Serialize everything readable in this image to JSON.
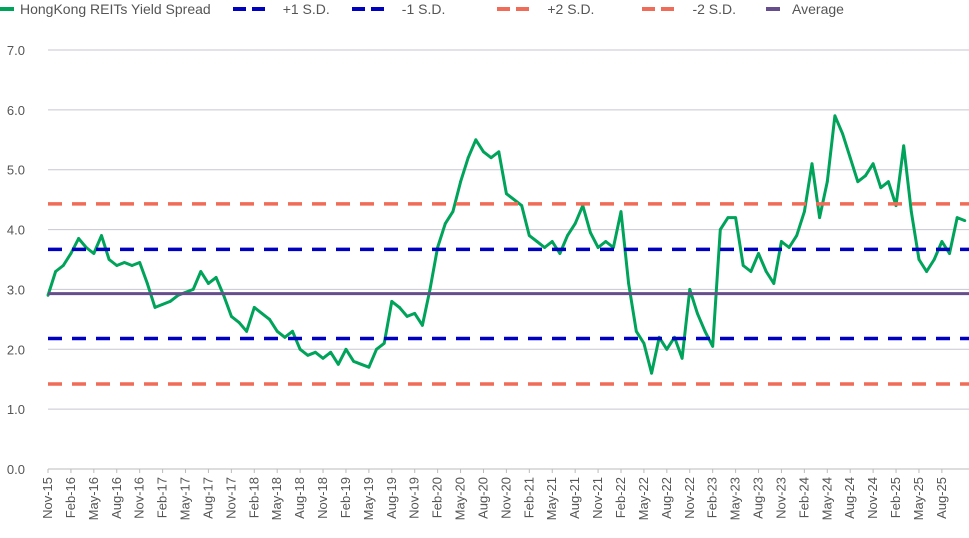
{
  "chart_data": {
    "type": "line",
    "title": "",
    "xlabel": "",
    "ylabel": "",
    "ylim": [
      0,
      7
    ],
    "y_ticks": [
      "0.0",
      "1.0",
      "2.0",
      "3.0",
      "4.0",
      "5.0",
      "6.0",
      "7.0"
    ],
    "x_ticks": [
      "Nov-15",
      "Feb-16",
      "May-16",
      "Aug-16",
      "Nov-16",
      "Feb-17",
      "May-17",
      "Aug-17",
      "Nov-17",
      "Feb-18",
      "May-18",
      "Aug-18",
      "Nov-18",
      "Feb-19",
      "May-19",
      "Aug-19",
      "Nov-19",
      "Feb-20",
      "May-20",
      "Aug-20",
      "Nov-20",
      "Feb-21",
      "May-21",
      "Aug-21",
      "Nov-21",
      "Feb-22",
      "May-22",
      "Aug-22",
      "Nov-22",
      "Feb-23",
      "May-23",
      "Aug-23",
      "Nov-23",
      "Feb-24",
      "May-24",
      "Aug-24",
      "Nov-24",
      "Feb-25",
      "May-25",
      "Aug-25"
    ],
    "grid": "horizontal",
    "legend_position": "top-left",
    "series": [
      {
        "name": "HongKong REITs Yield Spread",
        "color": "#00A35A",
        "style": "solid",
        "x": [
          "2015-11",
          "2015-12",
          "2016-01",
          "2016-02",
          "2016-03",
          "2016-04",
          "2016-05",
          "2016-06",
          "2016-07",
          "2016-08",
          "2016-09",
          "2016-10",
          "2016-11",
          "2016-12",
          "2017-01",
          "2017-02",
          "2017-03",
          "2017-04",
          "2017-05",
          "2017-06",
          "2017-07",
          "2017-08",
          "2017-09",
          "2017-10",
          "2017-11",
          "2017-12",
          "2018-01",
          "2018-02",
          "2018-03",
          "2018-04",
          "2018-05",
          "2018-06",
          "2018-07",
          "2018-08",
          "2018-09",
          "2018-10",
          "2018-11",
          "2018-12",
          "2019-01",
          "2019-02",
          "2019-03",
          "2019-04",
          "2019-05",
          "2019-06",
          "2019-07",
          "2019-08",
          "2019-09",
          "2019-10",
          "2019-11",
          "2019-12",
          "2020-01",
          "2020-02",
          "2020-03",
          "2020-04",
          "2020-05",
          "2020-06",
          "2020-07",
          "2020-08",
          "2020-09",
          "2020-10",
          "2020-11",
          "2020-12",
          "2021-01",
          "2021-02",
          "2021-03",
          "2021-04",
          "2021-05",
          "2021-06",
          "2021-07",
          "2021-08",
          "2021-09",
          "2021-10",
          "2021-11",
          "2021-12",
          "2022-01",
          "2022-02",
          "2022-03",
          "2022-04",
          "2022-05",
          "2022-06",
          "2022-07",
          "2022-08",
          "2022-09",
          "2022-10",
          "2022-11",
          "2022-12",
          "2023-01",
          "2023-02",
          "2023-03",
          "2023-04",
          "2023-05",
          "2023-06",
          "2023-07",
          "2023-08",
          "2023-09",
          "2023-10",
          "2023-11",
          "2023-12",
          "2024-01",
          "2024-02",
          "2024-03",
          "2024-04",
          "2024-05",
          "2024-06",
          "2024-07",
          "2024-08",
          "2024-09",
          "2024-10",
          "2024-11",
          "2024-12",
          "2025-01",
          "2025-02",
          "2025-03",
          "2025-04",
          "2025-05",
          "2025-06",
          "2025-07",
          "2025-08",
          "2025-09",
          "2025-10",
          "2025-11"
        ],
        "values": [
          2.9,
          3.3,
          3.4,
          3.6,
          3.85,
          3.7,
          3.6,
          3.9,
          3.5,
          3.4,
          3.45,
          3.4,
          3.45,
          3.1,
          2.7,
          2.75,
          2.8,
          2.9,
          2.95,
          3.0,
          3.3,
          3.1,
          3.2,
          2.9,
          2.55,
          2.45,
          2.3,
          2.7,
          2.6,
          2.5,
          2.3,
          2.2,
          2.3,
          2.0,
          1.9,
          1.95,
          1.85,
          1.95,
          1.75,
          2.0,
          1.8,
          1.75,
          1.7,
          2.0,
          2.1,
          2.8,
          2.7,
          2.55,
          2.6,
          2.4,
          3.0,
          3.7,
          4.1,
          4.3,
          4.8,
          5.2,
          5.5,
          5.3,
          5.2,
          5.3,
          4.6,
          4.5,
          4.4,
          3.9,
          3.8,
          3.7,
          3.8,
          3.6,
          3.9,
          4.1,
          4.4,
          3.95,
          3.7,
          3.8,
          3.7,
          4.3,
          3.1,
          2.3,
          2.1,
          1.6,
          2.2,
          2.0,
          2.2,
          1.85,
          3.0,
          2.6,
          2.3,
          2.05,
          4.0,
          4.2,
          4.2,
          3.4,
          3.3,
          3.6,
          3.3,
          3.1,
          3.8,
          3.7,
          3.9,
          4.3,
          5.1,
          4.2,
          4.8,
          5.9,
          5.6,
          5.2,
          4.8,
          4.9,
          5.1,
          4.7,
          4.8,
          4.4,
          5.4,
          4.3,
          3.5,
          3.3,
          3.5,
          3.8,
          3.6,
          4.2,
          4.15
        ]
      },
      {
        "name": "+1 S.D.",
        "color": "#0000C0",
        "style": "dashed",
        "value": 3.67
      },
      {
        "name": "-1 S.D.",
        "color": "#0000C0",
        "style": "dashed",
        "value": 2.18
      },
      {
        "name": "+2 S.D.",
        "color": "#F06C58",
        "style": "dashed",
        "value": 4.43
      },
      {
        "name": "-2 S.D.",
        "color": "#F06C58",
        "style": "dashed",
        "value": 1.42
      },
      {
        "name": "Average",
        "color": "#664E8C",
        "style": "solid",
        "value": 2.93
      }
    ]
  }
}
